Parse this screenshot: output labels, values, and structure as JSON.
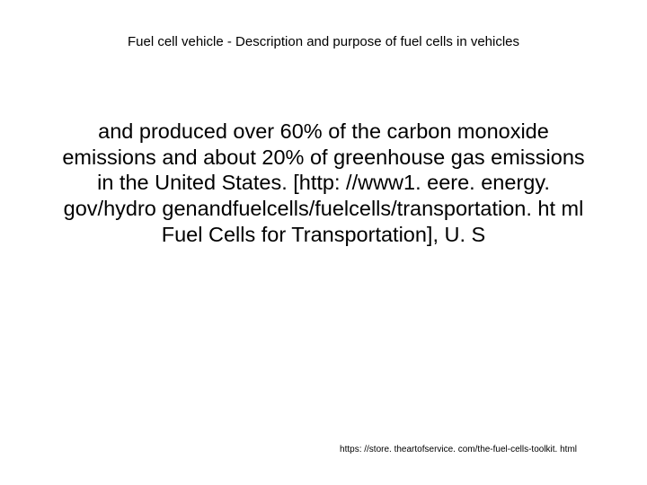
{
  "slide": {
    "title": "Fuel cell vehicle - Description and purpose of fuel cells in vehicles",
    "body": "and produced over 60% of the carbon monoxide emissions and about 20% of greenhouse gas emissions in the United States. [http: //www1. eere. energy. gov/hydro genandfuelcells/fuelcells/transportation. ht ml Fuel Cells for Transportation], U. S",
    "footer_url": "https: //store. theartofservice. com/the-fuel-cells-toolkit. html"
  },
  "colors": {
    "background": "#ffffff",
    "text": "#000000"
  },
  "typography": {
    "title_fontsize": 15,
    "body_fontsize": 23.5,
    "footer_fontsize": 10,
    "font_family": "Arial"
  }
}
